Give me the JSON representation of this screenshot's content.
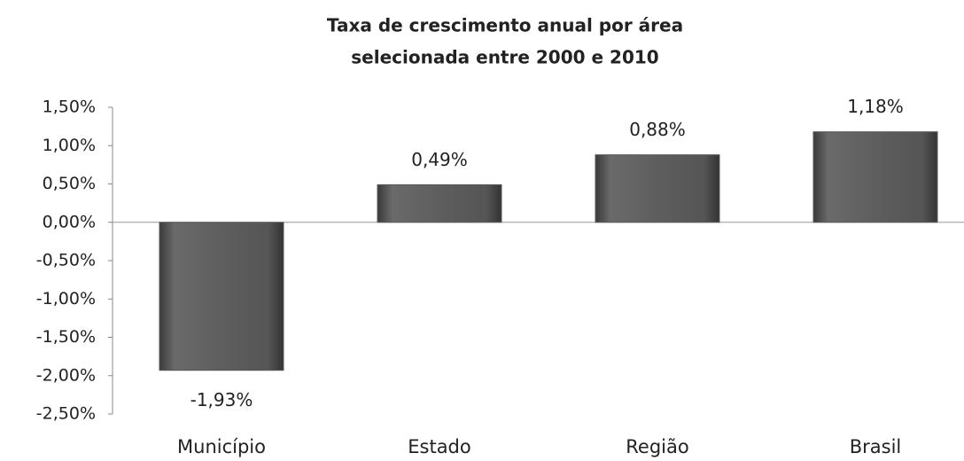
{
  "chart_data": {
    "type": "bar",
    "title": [
      "Taxa de crescimento anual por área",
      "selecionada entre 2000 e 2010"
    ],
    "categories": [
      "Município",
      "Estado",
      "Região",
      "Brasil"
    ],
    "values": [
      -1.93,
      0.49,
      0.88,
      1.18
    ],
    "value_labels": [
      "-1,93%",
      "0,49%",
      "0,88%",
      "1,18%"
    ],
    "color": "#595959",
    "ylim": [
      -2.5,
      1.5
    ],
    "yticks": [
      {
        "value": 1.5,
        "label": "1,50%"
      },
      {
        "value": 1.0,
        "label": "1,00%"
      },
      {
        "value": 0.5,
        "label": "0,50%"
      },
      {
        "value": 0.0,
        "label": "0,00%"
      },
      {
        "value": -0.5,
        "label": "-0,50%"
      },
      {
        "value": -1.0,
        "label": "-1,00%"
      },
      {
        "value": -1.5,
        "label": "-1,50%"
      },
      {
        "value": -2.0,
        "label": "-2,00%"
      },
      {
        "value": -2.5,
        "label": "-2,50%"
      }
    ]
  }
}
